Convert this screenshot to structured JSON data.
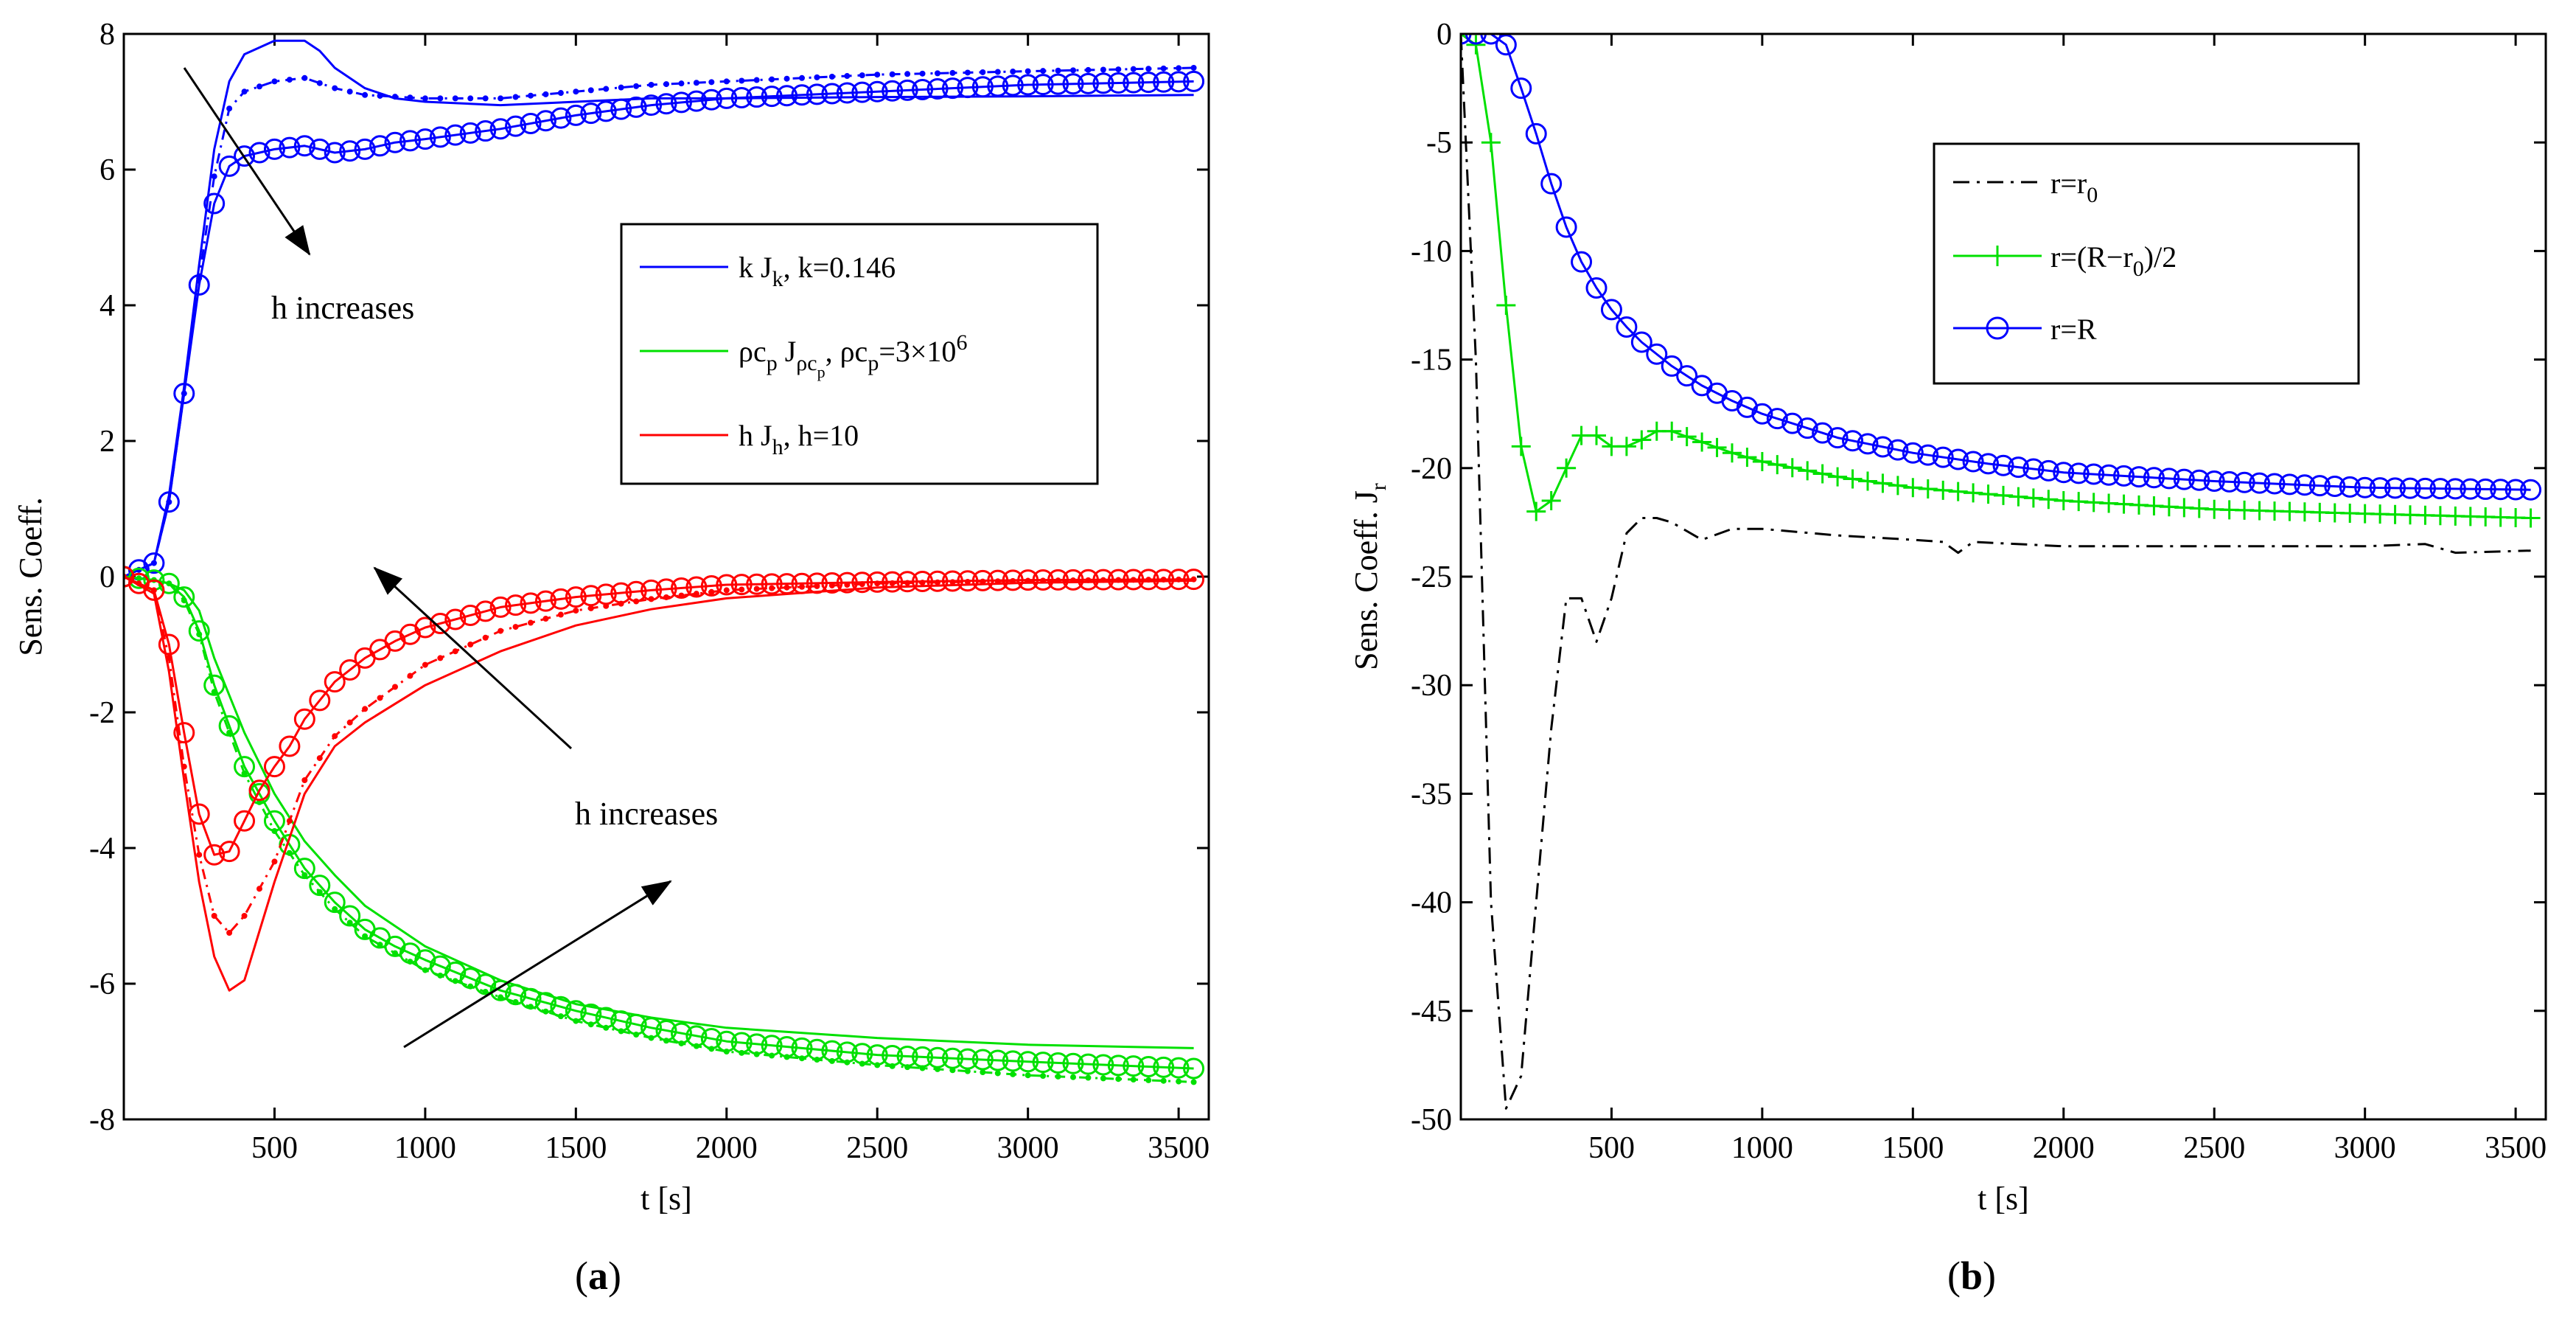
{
  "chart_data": [
    {
      "id": "a",
      "type": "line",
      "caption": "(a)",
      "xlabel": "t [s]",
      "ylabel": "Sens. Coeff.",
      "xlim": [
        0,
        3600
      ],
      "ylim": [
        -8,
        8
      ],
      "xticks": [
        500,
        1000,
        1500,
        2000,
        2500,
        3000,
        3500
      ],
      "yticks": [
        -8,
        -6,
        -4,
        -2,
        0,
        2,
        4,
        6,
        8
      ],
      "legend": {
        "position": "upper-right",
        "entries": [
          {
            "color": "#0000ff",
            "label": "k J_k, k=0.146"
          },
          {
            "color": "#00e000",
            "label": "ρc_p J_ρc_p, ρc_p=3×10^6"
          },
          {
            "color": "#ff0000",
            "label": "h J_h, h=10"
          }
        ]
      },
      "annotations": [
        {
          "text": "h increases",
          "region": "upper-left, below arrow",
          "arrow": "from top-left down-right"
        },
        {
          "text": "h increases",
          "region": "middle, between arrows",
          "arrow": "upward-left and upward-right"
        }
      ],
      "series": [
        {
          "name": "k J_k (h=10, circles)",
          "color": "#0000ff",
          "style": "solid-circle",
          "x": [
            0,
            100,
            150,
            200,
            250,
            300,
            350,
            400,
            500,
            600,
            700,
            800,
            900,
            1000,
            1250,
            1500,
            1750,
            2000,
            2500,
            3000,
            3550
          ],
          "y": [
            0,
            0.2,
            1.1,
            2.7,
            4.3,
            5.5,
            6.05,
            6.2,
            6.3,
            6.35,
            6.25,
            6.3,
            6.4,
            6.45,
            6.6,
            6.8,
            6.95,
            7.05,
            7.15,
            7.25,
            7.3
          ]
        },
        {
          "name": "k J_k (dotted)",
          "color": "#0000ff",
          "style": "dashdot-dot",
          "x": [
            0,
            100,
            150,
            200,
            250,
            300,
            350,
            400,
            500,
            600,
            700,
            800,
            1000,
            1250,
            1500,
            1750,
            2000,
            2500,
            3000,
            3550
          ],
          "y": [
            0,
            0.2,
            1.1,
            2.7,
            4.4,
            5.9,
            6.9,
            7.15,
            7.3,
            7.35,
            7.2,
            7.1,
            7.05,
            7.05,
            7.15,
            7.25,
            7.3,
            7.4,
            7.45,
            7.5
          ]
        },
        {
          "name": "k J_k (solid)",
          "color": "#0000ff",
          "style": "solid",
          "x": [
            0,
            100,
            150,
            200,
            250,
            300,
            350,
            400,
            500,
            600,
            650,
            700,
            800,
            900,
            1000,
            1250,
            1500,
            1750,
            2000,
            2500,
            3000,
            3550
          ],
          "y": [
            0,
            0.2,
            1.2,
            2.8,
            4.6,
            6.3,
            7.3,
            7.7,
            7.9,
            7.9,
            7.75,
            7.5,
            7.2,
            7.05,
            7.0,
            6.95,
            7.0,
            7.05,
            7.05,
            7.07,
            7.08,
            7.1
          ]
        },
        {
          "name": "ρc_p J_ρc_p (circles)",
          "color": "#00e000",
          "style": "solid-circle",
          "x": [
            0,
            100,
            150,
            200,
            250,
            300,
            400,
            500,
            600,
            700,
            800,
            900,
            1000,
            1250,
            1500,
            1750,
            2000,
            2500,
            3000,
            3550
          ],
          "y": [
            0,
            -0.05,
            -0.1,
            -0.3,
            -0.8,
            -1.6,
            -2.8,
            -3.6,
            -4.3,
            -4.8,
            -5.2,
            -5.45,
            -5.65,
            -6.1,
            -6.4,
            -6.65,
            -6.85,
            -7.05,
            -7.15,
            -7.25
          ]
        },
        {
          "name": "ρc_p J_ρc_p (dotted)",
          "color": "#00e000",
          "style": "dashdot-dot",
          "x": [
            0,
            100,
            150,
            200,
            250,
            300,
            400,
            500,
            600,
            700,
            800,
            1000,
            1250,
            1500,
            1750,
            2000,
            2500,
            3000,
            3550
          ],
          "y": [
            0,
            -0.05,
            -0.1,
            -0.35,
            -0.85,
            -1.7,
            -2.9,
            -3.75,
            -4.4,
            -4.9,
            -5.3,
            -5.8,
            -6.2,
            -6.55,
            -6.8,
            -7.0,
            -7.2,
            -7.35,
            -7.45
          ]
        },
        {
          "name": "ρc_p J_ρc_p (solid)",
          "color": "#00e000",
          "style": "solid",
          "x": [
            0,
            100,
            150,
            200,
            250,
            300,
            400,
            500,
            600,
            700,
            800,
            1000,
            1250,
            1500,
            1750,
            2000,
            2500,
            3000,
            3550
          ],
          "y": [
            0,
            -0.05,
            -0.1,
            -0.2,
            -0.5,
            -1.2,
            -2.3,
            -3.2,
            -3.9,
            -4.4,
            -4.85,
            -5.45,
            -5.95,
            -6.3,
            -6.5,
            -6.65,
            -6.8,
            -6.9,
            -6.95
          ]
        },
        {
          "name": "h J_h (circles)",
          "color": "#ff0000",
          "style": "solid-circle",
          "x": [
            0,
            100,
            150,
            200,
            250,
            300,
            350,
            400,
            450,
            500,
            550,
            600,
            700,
            800,
            900,
            1000,
            1250,
            1500,
            1750,
            2000,
            2500,
            3000,
            3550
          ],
          "y": [
            0,
            -0.2,
            -1.0,
            -2.3,
            -3.5,
            -4.1,
            -4.05,
            -3.6,
            -3.15,
            -2.8,
            -2.5,
            -2.1,
            -1.55,
            -1.2,
            -0.95,
            -0.75,
            -0.45,
            -0.3,
            -0.2,
            -0.12,
            -0.08,
            -0.05,
            -0.04
          ]
        },
        {
          "name": "h J_h (dotted)",
          "color": "#ff0000",
          "style": "dashdot-dot",
          "x": [
            0,
            100,
            150,
            200,
            250,
            300,
            350,
            400,
            500,
            600,
            700,
            800,
            1000,
            1250,
            1500,
            1750,
            2000,
            2500,
            3000,
            3550
          ],
          "y": [
            0,
            -0.2,
            -1.2,
            -2.8,
            -4.1,
            -5.0,
            -5.25,
            -5.0,
            -4.2,
            -3.0,
            -2.35,
            -1.95,
            -1.3,
            -0.8,
            -0.5,
            -0.33,
            -0.2,
            -0.1,
            -0.06,
            -0.04
          ]
        },
        {
          "name": "h J_h (solid)",
          "color": "#ff0000",
          "style": "solid",
          "x": [
            0,
            100,
            150,
            200,
            250,
            300,
            350,
            400,
            500,
            600,
            700,
            800,
            1000,
            1250,
            1500,
            1750,
            2000,
            2500,
            3000,
            3550
          ],
          "y": [
            0,
            -0.25,
            -1.4,
            -3.0,
            -4.5,
            -5.6,
            -6.1,
            -5.95,
            -4.5,
            -3.2,
            -2.5,
            -2.15,
            -1.6,
            -1.1,
            -0.72,
            -0.48,
            -0.32,
            -0.16,
            -0.09,
            -0.06
          ]
        }
      ]
    },
    {
      "id": "b",
      "type": "line",
      "caption": "(b)",
      "xlabel": "t [s]",
      "ylabel": "Sens. Coeff. J_r",
      "xlim": [
        0,
        3600
      ],
      "ylim": [
        -50,
        0
      ],
      "xticks": [
        500,
        1000,
        1500,
        2000,
        2500,
        3000,
        3500
      ],
      "yticks": [
        -50,
        -45,
        -40,
        -35,
        -30,
        -25,
        -20,
        -15,
        -10,
        -5,
        0
      ],
      "legend": {
        "position": "upper-right",
        "entries": [
          {
            "color": "#000000",
            "label": "r=r_0"
          },
          {
            "color": "#00e000",
            "label": "r=(R−r_0)/2"
          },
          {
            "color": "#0000ff",
            "label": "r=R"
          }
        ]
      },
      "series": [
        {
          "name": "r=r0",
          "color": "#000000",
          "style": "dashdot",
          "x": [
            0,
            50,
            100,
            150,
            200,
            250,
            300,
            350,
            400,
            450,
            500,
            550,
            600,
            650,
            700,
            800,
            900,
            1000,
            1250,
            1500,
            1600,
            1650,
            1700,
            2000,
            2500,
            3000,
            3200,
            3300,
            3550
          ],
          "y": [
            0,
            -15,
            -40,
            -49.5,
            -48,
            -40,
            -32,
            -26,
            -26,
            -28,
            -26,
            -23,
            -22.3,
            -22.3,
            -22.5,
            -23.3,
            -22.8,
            -22.8,
            -23.1,
            -23.3,
            -23.4,
            -23.9,
            -23.4,
            -23.6,
            -23.6,
            -23.6,
            -23.5,
            -23.9,
            -23.8
          ]
        },
        {
          "name": "r=(R-r0)/2",
          "color": "#00e000",
          "style": "solid-plus",
          "x": [
            0,
            50,
            100,
            150,
            200,
            250,
            300,
            350,
            400,
            450,
            500,
            550,
            600,
            650,
            700,
            800,
            900,
            1000,
            1250,
            1500,
            1750,
            2000,
            2500,
            3000,
            3550
          ],
          "y": [
            0,
            -0.5,
            -5,
            -12.5,
            -19,
            -22,
            -21.5,
            -20,
            -18.5,
            -18.5,
            -19,
            -19,
            -18.7,
            -18.3,
            -18.3,
            -18.8,
            -19.3,
            -19.7,
            -20.4,
            -20.9,
            -21.2,
            -21.5,
            -21.9,
            -22.1,
            -22.3
          ]
        },
        {
          "name": "r=R",
          "color": "#0000ff",
          "style": "solid-circle",
          "x": [
            0,
            50,
            100,
            150,
            200,
            250,
            300,
            350,
            400,
            450,
            500,
            550,
            600,
            700,
            800,
            900,
            1000,
            1250,
            1500,
            1750,
            2000,
            2500,
            3000,
            3550
          ],
          "y": [
            0,
            0,
            0,
            -0.5,
            -2.5,
            -4.6,
            -6.9,
            -8.9,
            -10.5,
            -11.7,
            -12.7,
            -13.5,
            -14.2,
            -15.3,
            -16.2,
            -16.9,
            -17.5,
            -18.6,
            -19.3,
            -19.8,
            -20.2,
            -20.6,
            -20.9,
            -21.0
          ]
        }
      ]
    }
  ]
}
